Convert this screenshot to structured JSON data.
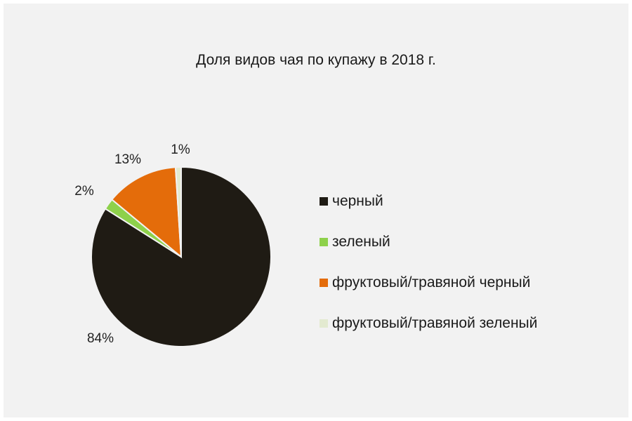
{
  "chart_data": {
    "type": "pie",
    "title": "Доля видов чая по купажу в 2018 г.",
    "categories": [
      "черный",
      "зеленый",
      "фруктовый/травяной черный",
      "фруктовый/травяной зеленый"
    ],
    "values": [
      84,
      2,
      13,
      1
    ],
    "data_labels": [
      "84%",
      "2%",
      "13%",
      "1%"
    ],
    "colors": [
      "#1f1b14",
      "#8ed14b",
      "#e46c0a",
      "#e3ead0"
    ],
    "legend_position": "right",
    "unit": "%"
  }
}
